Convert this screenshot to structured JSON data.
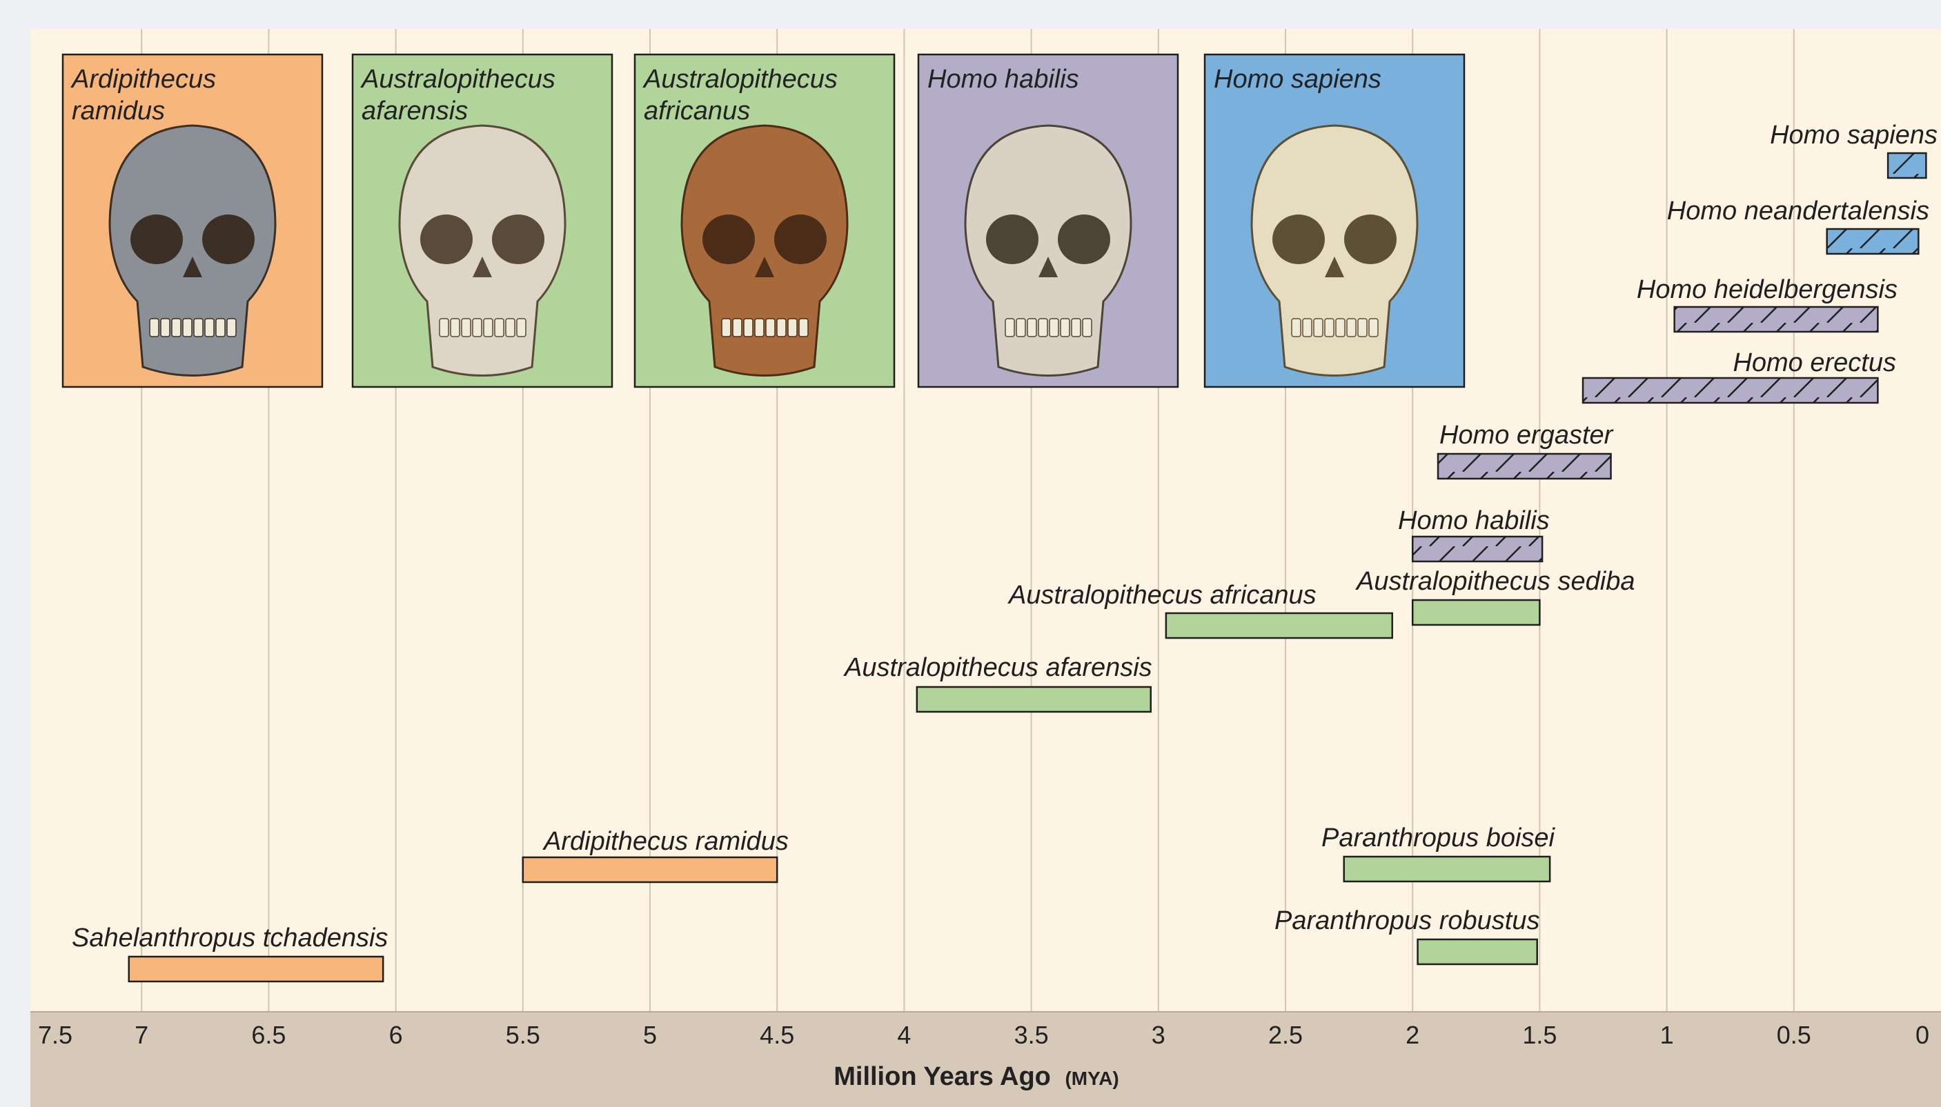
{
  "chart_data": {
    "type": "range-bar",
    "x_axis": {
      "label": "Million Years Ago",
      "label_suffix": "(MYA)",
      "ticks": [
        "7.5",
        "7",
        "6.5",
        "6",
        "5.5",
        "5",
        "4.5",
        "4",
        "3.5",
        "3",
        "2.5",
        "2",
        "1.5",
        "1",
        "0.5",
        "0"
      ],
      "range": [
        7.5,
        0
      ],
      "reversed": true
    },
    "grid": "vertical",
    "groups": {
      "ardipithecine": {
        "color": "#f7b67c"
      },
      "australopith": {
        "color": "#b0d499"
      },
      "homo_early": {
        "color": "#b3adc7",
        "hatched": true
      },
      "homo_sapiens": {
        "color": "#7ab0dc",
        "hatched": true
      }
    },
    "series": [
      {
        "name": "Sahelanthropus tchadensis",
        "start": 7.05,
        "end": 6.05,
        "group": "ardipithecine"
      },
      {
        "name": "Ardipithecus ramidus",
        "start": 5.5,
        "end": 4.5,
        "group": "ardipithecine"
      },
      {
        "name": "Australopithecus afarensis",
        "start": 3.95,
        "end": 3.03,
        "group": "australopith"
      },
      {
        "name": "Australopithecus africanus",
        "start": 2.97,
        "end": 2.08,
        "group": "australopith"
      },
      {
        "name": "Australopithecus sediba",
        "start": 2.0,
        "end": 1.5,
        "group": "australopith"
      },
      {
        "name": "Paranthropus boisei",
        "start": 2.27,
        "end": 1.46,
        "group": "australopith"
      },
      {
        "name": "Paranthropus robustus",
        "start": 1.98,
        "end": 1.51,
        "group": "australopith"
      },
      {
        "name": "Homo habilis",
        "start": 2.0,
        "end": 1.49,
        "group": "homo_early"
      },
      {
        "name": "Homo ergaster",
        "start": 1.9,
        "end": 1.22,
        "group": "homo_early"
      },
      {
        "name": "Homo erectus",
        "start": 1.33,
        "end": 0.17,
        "group": "homo_early"
      },
      {
        "name": "Homo heidelbergensis",
        "start": 0.97,
        "end": 0.17,
        "group": "homo_early"
      },
      {
        "name": "Homo neandertalensis",
        "start": 0.37,
        "end": 0.01,
        "group": "homo_sapiens"
      },
      {
        "name": "Homo sapiens",
        "start": 0.13,
        "end": -0.02,
        "group": "homo_sapiens"
      }
    ],
    "cards": [
      {
        "title_lines": [
          "Ardipithecus",
          "ramidus"
        ],
        "group": "ardipithecine",
        "skull": "skull-ardipithecus-ramidus-icon"
      },
      {
        "title_lines": [
          "Australopithecus",
          "afarensis"
        ],
        "group": "australopith",
        "skull": "skull-australopithecus-afarensis-icon"
      },
      {
        "title_lines": [
          "Australopithecus",
          "africanus"
        ],
        "group": "australopith",
        "skull": "skull-australopithecus-africanus-icon"
      },
      {
        "title_lines": [
          "Homo habilis"
        ],
        "group": "homo_early",
        "skull": "skull-homo-habilis-icon"
      },
      {
        "title_lines": [
          "Homo sapiens"
        ],
        "group": "homo_sapiens",
        "skull": "skull-homo-sapiens-icon"
      }
    ]
  }
}
